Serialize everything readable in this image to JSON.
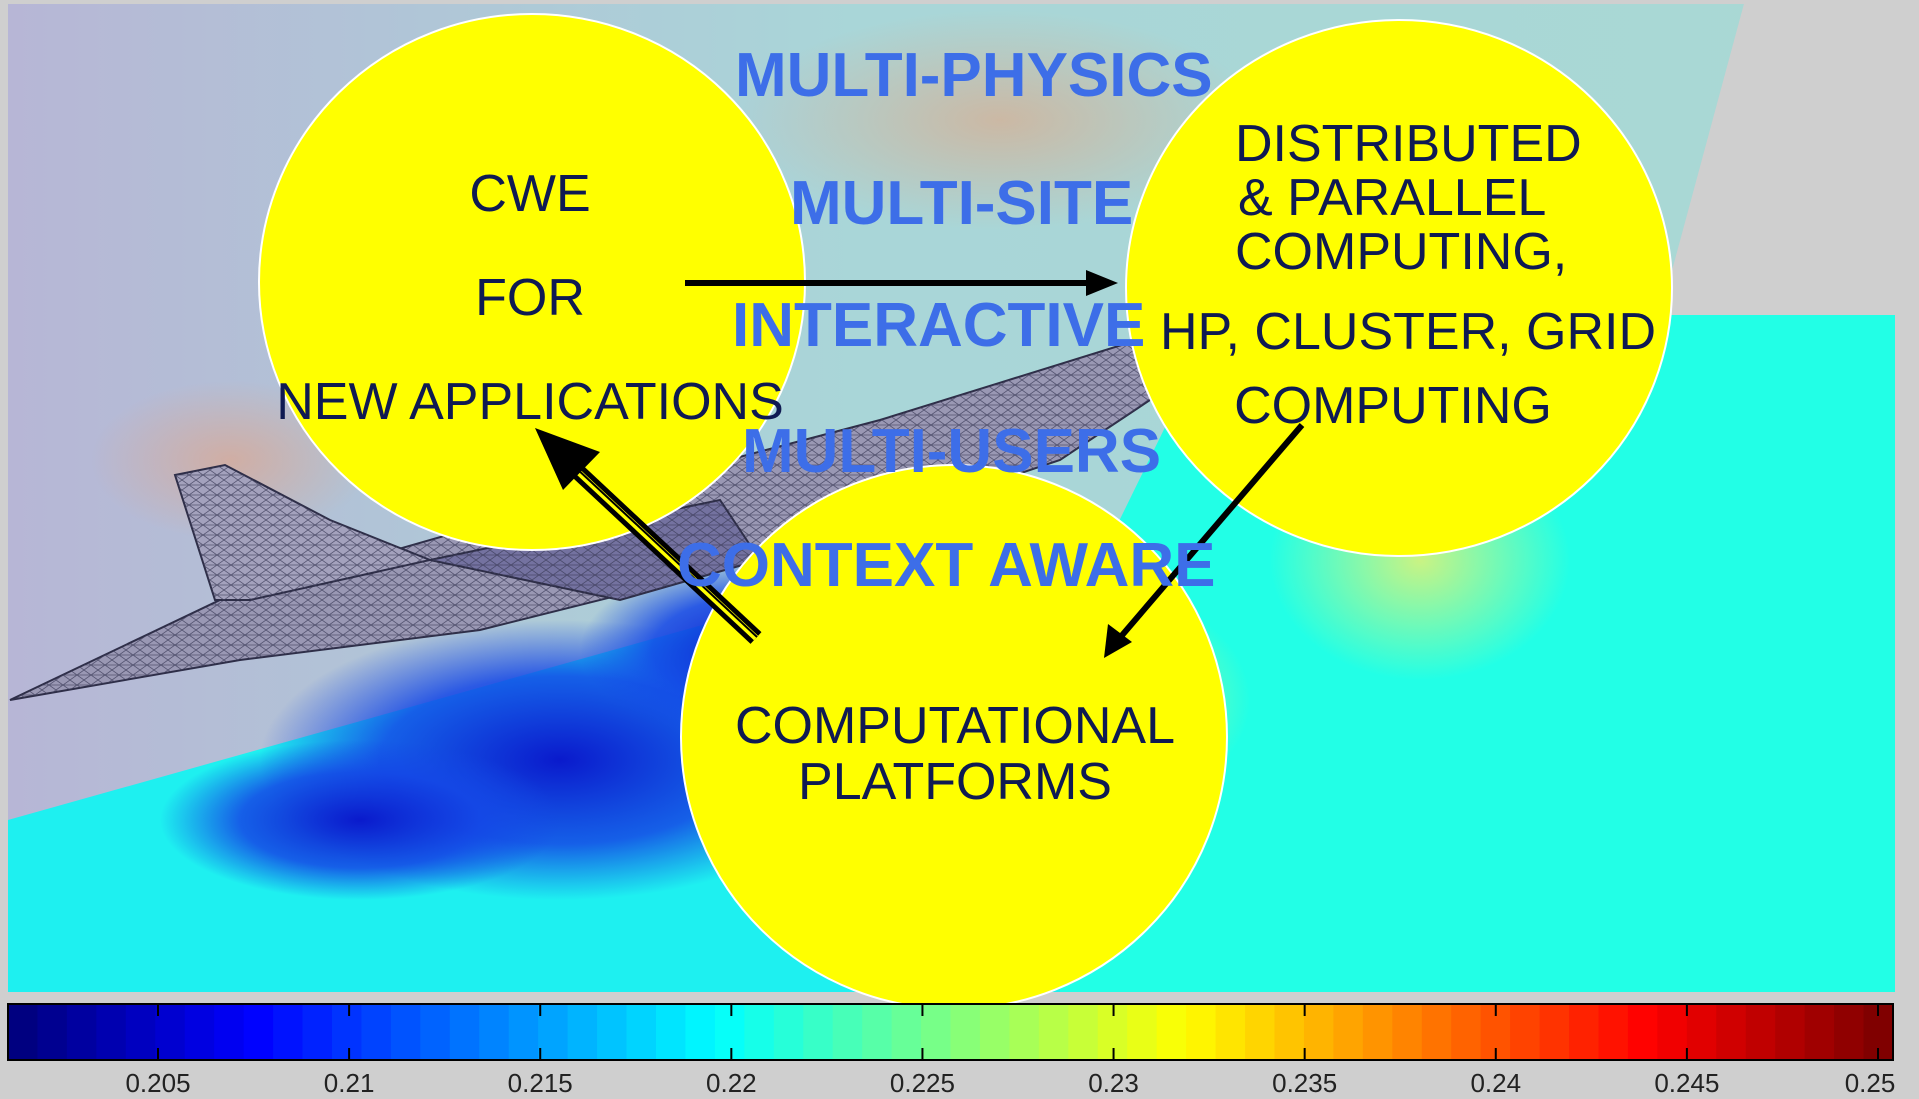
{
  "circles": {
    "cwe": {
      "lines": [
        "CWE",
        "FOR",
        "NEW APPLICATIONS"
      ]
    },
    "distributed": {
      "lines": [
        "DISTRIBUTED",
        "& PARALLEL",
        "COMPUTING,",
        "HP, CLUSTER, GRID",
        "COMPUTING"
      ]
    },
    "platforms": {
      "lines": [
        "COMPUTATIONAL",
        "PLATFORMS"
      ]
    }
  },
  "labels": {
    "multi_physics": "MULTI-PHYSICS",
    "multi_site": "MULTI-SITE",
    "interactive": "INTERACTIVE",
    "multi_users": "MULTI-USERS",
    "context_aware": "CONTEXT AWARE"
  },
  "colorbar": {
    "ticks": [
      "0.205",
      "0.21",
      "0.215",
      "0.22",
      "0.225",
      "0.23",
      "0.235",
      "0.24",
      "0.245",
      "0.25"
    ],
    "colormap": "jet"
  },
  "colors": {
    "circle_fill": "#ffff00",
    "label_blue": "#3d6ee8",
    "text_dark": "#0f1a52"
  }
}
